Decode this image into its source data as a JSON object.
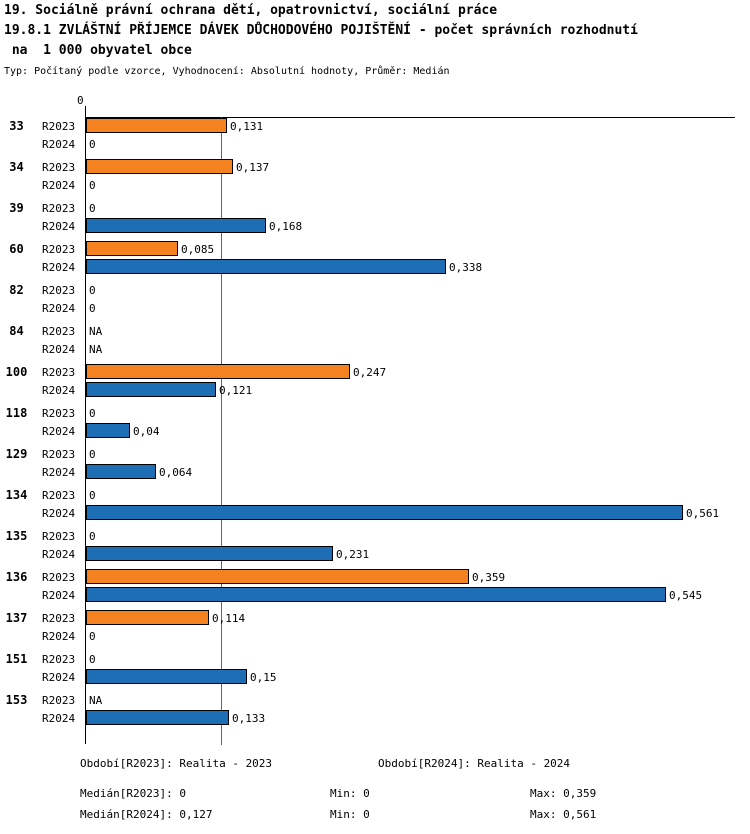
{
  "header": {
    "line1": "19. Sociálně právní ochrana dětí, opatrovnictví, sociální práce",
    "line2": "19.8.1 ZVLÁŠTNÍ PŘÍJEMCE DÁVEK DŮCHODOVÉHO POJIŠTĚNÍ - počet správních rozhodnutí",
    "line3": " na  1 000 obyvatel obce",
    "subtitle": "Typ: Počítaný podle vzorce, Vyhodnocení: Absolutní hodnoty, Průměr: Medián"
  },
  "chart_data": {
    "type": "bar",
    "orientation": "horizontal",
    "title": "19.8.1 ZVLÁŠTNÍ PŘÍJEMCE DÁVEK DŮCHODOVÉHO POJIŠTĚNÍ - počet správních rozhodnutí na 1 000 obyvatel obce",
    "value_axis": {
      "zero_label": "0",
      "decimal_separator": ",",
      "xlim": [
        0,
        0.61
      ]
    },
    "series": [
      {
        "key": "r2023",
        "label": "R2023",
        "color": "#f58220"
      },
      {
        "key": "r2024",
        "label": "R2024",
        "color": "#1e6eb5"
      }
    ],
    "median_line": {
      "value": 0.127,
      "color": "#2a8080"
    },
    "stats": {
      "r2023": {
        "median": 0,
        "min": 0,
        "max": 0.359
      },
      "r2024": {
        "median": 0.127,
        "min": 0,
        "max": 0.561
      }
    },
    "groups": [
      {
        "id": "33",
        "values": {
          "r2023": {
            "value": 0.131,
            "label": "0,131"
          },
          "r2024": {
            "value": 0,
            "label": "0"
          }
        }
      },
      {
        "id": "34",
        "values": {
          "r2023": {
            "value": 0.137,
            "label": "0,137"
          },
          "r2024": {
            "value": 0,
            "label": "0"
          }
        }
      },
      {
        "id": "39",
        "values": {
          "r2023": {
            "value": 0,
            "label": "0"
          },
          "r2024": {
            "value": 0.168,
            "label": "0,168"
          }
        }
      },
      {
        "id": "60",
        "values": {
          "r2023": {
            "value": 0.085,
            "label": "0,085"
          },
          "r2024": {
            "value": 0.338,
            "label": "0,338"
          }
        }
      },
      {
        "id": "82",
        "values": {
          "r2023": {
            "value": 0,
            "label": "0"
          },
          "r2024": {
            "value": 0,
            "label": "0"
          }
        }
      },
      {
        "id": "84",
        "values": {
          "r2023": {
            "value": null,
            "label": "NA"
          },
          "r2024": {
            "value": null,
            "label": "NA"
          }
        }
      },
      {
        "id": "100",
        "values": {
          "r2023": {
            "value": 0.247,
            "label": "0,247"
          },
          "r2024": {
            "value": 0.121,
            "label": "0,121"
          }
        }
      },
      {
        "id": "118",
        "values": {
          "r2023": {
            "value": 0,
            "label": "0"
          },
          "r2024": {
            "value": 0.04,
            "label": "0,04"
          }
        }
      },
      {
        "id": "129",
        "values": {
          "r2023": {
            "value": 0,
            "label": "0"
          },
          "r2024": {
            "value": 0.064,
            "label": "0,064"
          }
        }
      },
      {
        "id": "134",
        "values": {
          "r2023": {
            "value": 0,
            "label": "0"
          },
          "r2024": {
            "value": 0.561,
            "label": "0,561"
          }
        }
      },
      {
        "id": "135",
        "values": {
          "r2023": {
            "value": 0,
            "label": "0"
          },
          "r2024": {
            "value": 0.231,
            "label": "0,231"
          }
        }
      },
      {
        "id": "136",
        "values": {
          "r2023": {
            "value": 0.359,
            "label": "0,359"
          },
          "r2024": {
            "value": 0.545,
            "label": "0,545"
          }
        }
      },
      {
        "id": "137",
        "values": {
          "r2023": {
            "value": 0.114,
            "label": "0,114"
          },
          "r2024": {
            "value": 0,
            "label": "0"
          }
        }
      },
      {
        "id": "151",
        "values": {
          "r2023": {
            "value": 0,
            "label": "0"
          },
          "r2024": {
            "value": 0.15,
            "label": "0,15"
          }
        }
      },
      {
        "id": "153",
        "values": {
          "r2023": {
            "value": null,
            "label": "NA"
          },
          "r2024": {
            "value": 0.133,
            "label": "0,133"
          }
        }
      }
    ]
  },
  "footer": {
    "period_r2023": "Období[R2023]: Realita - 2023",
    "period_r2024": "Období[R2024]: Realita - 2024",
    "median_r2023": "Medián[R2023]: 0",
    "min_r2023": "Min: 0",
    "max_r2023": "Max: 0,359",
    "median_r2024": "Medián[R2024]: 0,127",
    "min_r2024": "Min: 0",
    "max_r2024": "Max: 0,561"
  }
}
